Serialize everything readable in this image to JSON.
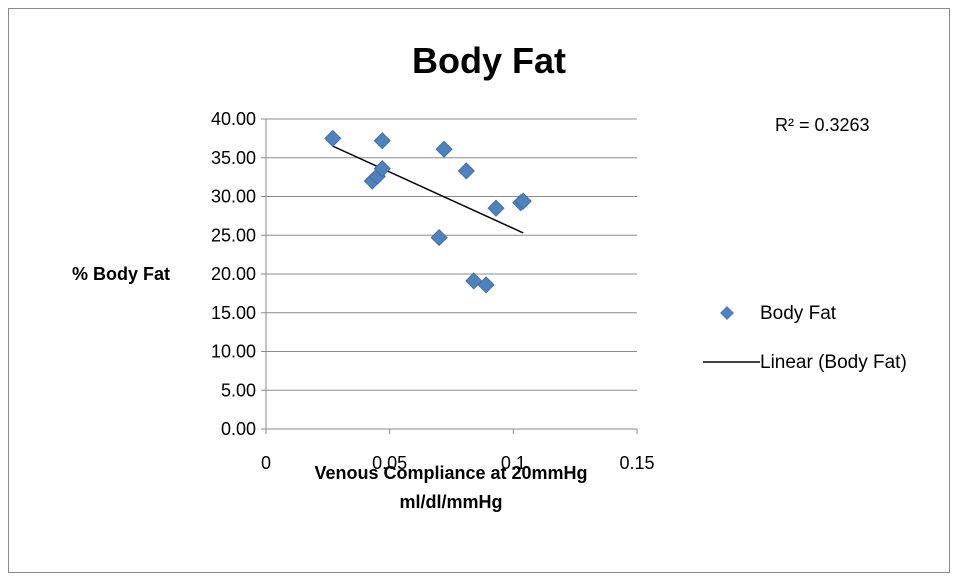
{
  "chart_data": {
    "type": "scatter",
    "title": "Body Fat",
    "xlabel_lines": [
      "Venous Compliance at 20mmHg",
      "ml/dl/mmHg"
    ],
    "ylabel": "% Body Fat",
    "xlim": [
      0,
      0.15
    ],
    "ylim": [
      0,
      40
    ],
    "x_ticks": [
      "0",
      "0.05",
      "0.1",
      "0.15"
    ],
    "x_tick_values": [
      0,
      0.05,
      0.1,
      0.15
    ],
    "y_ticks": [
      "0.00",
      "5.00",
      "10.00",
      "15.00",
      "20.00",
      "25.00",
      "30.00",
      "35.00",
      "40.00"
    ],
    "y_tick_values": [
      0,
      5,
      10,
      15,
      20,
      25,
      30,
      35,
      40
    ],
    "grid": "horizontal",
    "legend_position": "right",
    "series": [
      {
        "name": "Body Fat",
        "marker": "diamond",
        "color": "#4f81bd",
        "points": [
          [
            0.027,
            37.5
          ],
          [
            0.043,
            32.0
          ],
          [
            0.045,
            32.6
          ],
          [
            0.047,
            33.6
          ],
          [
            0.047,
            37.2
          ],
          [
            0.07,
            24.7
          ],
          [
            0.072,
            36.1
          ],
          [
            0.081,
            33.3
          ],
          [
            0.084,
            19.1
          ],
          [
            0.089,
            18.6
          ],
          [
            0.093,
            28.5
          ],
          [
            0.103,
            29.2
          ],
          [
            0.104,
            29.4
          ]
        ]
      }
    ],
    "trendline": {
      "name": "Linear (Body Fat)",
      "type": "linear",
      "color": "#000000",
      "x_range": [
        0.027,
        0.104
      ],
      "y_endpoints": [
        36.5,
        25.3
      ],
      "r_squared_label": "R² = 0.3263"
    }
  }
}
